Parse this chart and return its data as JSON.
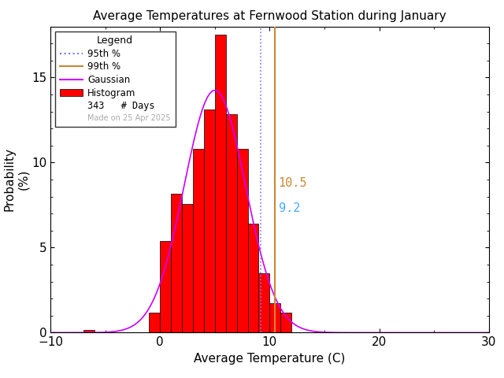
{
  "title": "Average Temperatures at Fernwood Station during January",
  "xlabel": "Average Temperature (C)",
  "ylabel": "Probability\n(%)",
  "xlim": [
    -10,
    30
  ],
  "ylim": [
    0,
    18
  ],
  "xticks": [
    -10,
    0,
    10,
    20,
    30
  ],
  "yticks": [
    0,
    5,
    10,
    15
  ],
  "bin_left_edges": [
    -7,
    -6,
    -5,
    -4,
    -3,
    -2,
    -1,
    0,
    1,
    2,
    3,
    4,
    5,
    6,
    7,
    8,
    9,
    10,
    11,
    12,
    13
  ],
  "bin_heights": [
    0.15,
    0.0,
    0.0,
    0.0,
    0.0,
    0.0,
    1.16,
    5.39,
    8.16,
    7.58,
    10.79,
    13.12,
    17.5,
    12.83,
    10.79,
    6.41,
    3.5,
    1.75,
    1.17,
    0.0,
    0.0
  ],
  "hist_color": "#ff0000",
  "hist_edgecolor": "#000000",
  "gaussian_color": "#cc00ff",
  "gaussian_mean": 5.0,
  "gaussian_std": 2.8,
  "percentile_95_x": 9.2,
  "percentile_95_color": "#7777ff",
  "percentile_99_x": 10.5,
  "percentile_99_color": "#cc8833",
  "percentile_95_label": "9.2",
  "percentile_99_label": "10.5",
  "n_days": 343,
  "made_on": "Made on 25 Apr 2025",
  "background_color": "#ffffff",
  "title_fontsize": 11,
  "axis_fontsize": 11,
  "tick_fontsize": 11
}
